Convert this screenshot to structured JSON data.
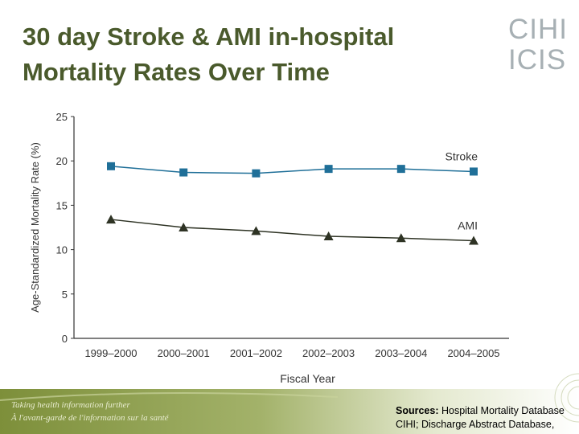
{
  "slide": {
    "title_line1": "30 day Stroke & AMI in-hospital",
    "title_line2": "Mortality Rates Over Time"
  },
  "logo": {
    "line1": "CIHI",
    "line2": "ICIS"
  },
  "footer": {
    "tagline_en": "Taking health information further",
    "tagline_fr": "À l'avant-garde de l'information sur la santé"
  },
  "sources": {
    "label": "Sources:",
    "line1_text": " Hospital Mortality Database",
    "line2": "CIHI; Discharge Abstract Database,"
  },
  "colors": {
    "title": "#4a5a2c",
    "stroke_series": "#1f6f98",
    "ami_series": "#2e3324",
    "footer_green": "#8a9a44"
  },
  "chart_data": {
    "type": "line",
    "title": "",
    "xlabel": "Fiscal Year",
    "ylabel": "Age-Standardized Mortality Rate (%)",
    "ylim": [
      0,
      25
    ],
    "yticks": [
      "0",
      "5",
      "10",
      "15",
      "20",
      "25"
    ],
    "categories": [
      "1999–2000",
      "2000–2001",
      "2001–2002",
      "2002–2003",
      "2003–2004",
      "2004–2005"
    ],
    "series": [
      {
        "name": "Stroke",
        "marker": "square",
        "values": [
          19.4,
          18.7,
          18.6,
          19.1,
          19.1,
          18.8
        ]
      },
      {
        "name": "AMI",
        "marker": "triangle",
        "values": [
          13.4,
          12.5,
          12.1,
          11.5,
          11.3,
          11.0
        ]
      }
    ]
  }
}
